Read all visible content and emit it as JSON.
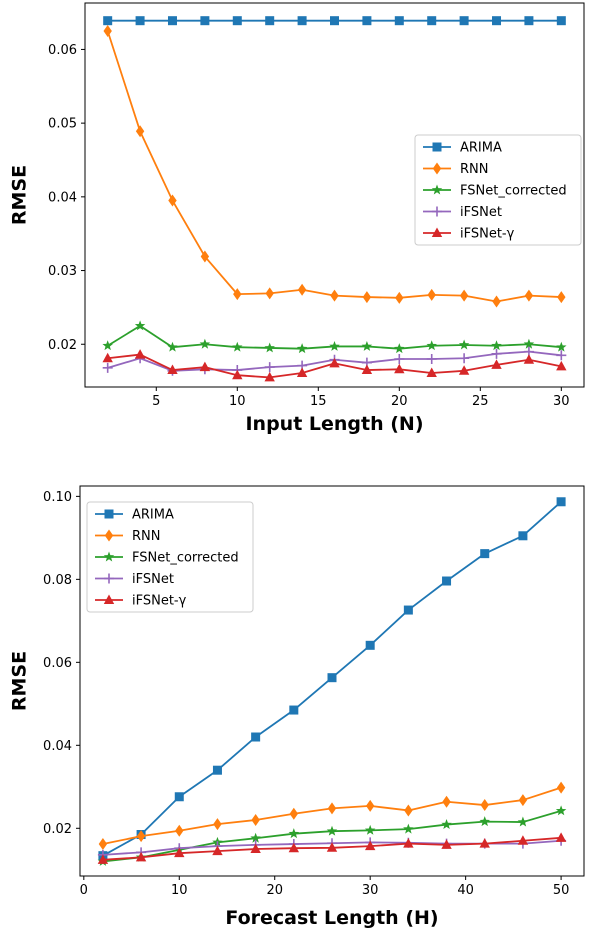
{
  "chart_data": [
    {
      "type": "line",
      "xlabel": "Input Length (N)",
      "ylabel": "RMSE",
      "x": [
        2,
        4,
        6,
        8,
        10,
        12,
        14,
        16,
        18,
        20,
        22,
        24,
        26,
        28,
        30
      ],
      "xlim": [
        0.6,
        31.4
      ],
      "ylim": [
        0.0142,
        0.0663
      ],
      "xticks": [
        5,
        10,
        15,
        20,
        25,
        30
      ],
      "yticks": [
        0.02,
        0.03,
        0.04,
        0.05,
        0.06
      ],
      "legend_position": "center-right",
      "grid": false,
      "series": [
        {
          "name": "ARIMA",
          "color": "#1f77b4",
          "marker": "square",
          "values": [
            0.0639,
            0.0639,
            0.0639,
            0.0639,
            0.0639,
            0.0639,
            0.0639,
            0.0639,
            0.0639,
            0.0639,
            0.0639,
            0.0639,
            0.0639,
            0.0639,
            0.0639
          ]
        },
        {
          "name": "RNN",
          "color": "#ff7f0e",
          "marker": "diamond",
          "values": [
            0.0625,
            0.0489,
            0.0395,
            0.0319,
            0.0268,
            0.0269,
            0.0274,
            0.0266,
            0.0264,
            0.0263,
            0.0267,
            0.0266,
            0.0258,
            0.0266,
            0.0264
          ]
        },
        {
          "name": "FSNet_corrected",
          "color": "#2ca02c",
          "marker": "star",
          "values": [
            0.0198,
            0.0225,
            0.0196,
            0.02,
            0.0196,
            0.0195,
            0.0194,
            0.0197,
            0.0197,
            0.0194,
            0.0198,
            0.0199,
            0.0198,
            0.02,
            0.0196
          ]
        },
        {
          "name": "iFSNet",
          "color": "#9467bd",
          "marker": "plus",
          "values": [
            0.0168,
            0.0181,
            0.0164,
            0.0166,
            0.0165,
            0.0169,
            0.0171,
            0.0179,
            0.0175,
            0.018,
            0.018,
            0.0181,
            0.0187,
            0.019,
            0.0185
          ]
        },
        {
          "name": "iFSNet-γ",
          "color": "#d62728",
          "marker": "triangle",
          "values": [
            0.0181,
            0.0186,
            0.0165,
            0.0169,
            0.0158,
            0.0155,
            0.0161,
            0.0174,
            0.0165,
            0.0166,
            0.0161,
            0.0164,
            0.0172,
            0.0179,
            0.017
          ]
        }
      ]
    },
    {
      "type": "line",
      "xlabel": "Forecast Length (H)",
      "ylabel": "RMSE",
      "x": [
        2,
        6,
        10,
        14,
        18,
        22,
        26,
        30,
        34,
        38,
        42,
        46,
        50
      ],
      "xlim": [
        -0.4,
        52.4
      ],
      "ylim": [
        0.0085,
        0.1025
      ],
      "xticks": [
        0,
        10,
        20,
        30,
        40,
        50
      ],
      "yticks": [
        0.02,
        0.04,
        0.06,
        0.08,
        0.1
      ],
      "legend_position": "upper-left",
      "grid": false,
      "series": [
        {
          "name": "ARIMA",
          "color": "#1f77b4",
          "marker": "square",
          "values": [
            0.0134,
            0.0185,
            0.0276,
            0.034,
            0.042,
            0.0485,
            0.0563,
            0.0641,
            0.0726,
            0.0796,
            0.0862,
            0.0905,
            0.0987
          ]
        },
        {
          "name": "RNN",
          "color": "#ff7f0e",
          "marker": "diamond",
          "values": [
            0.0162,
            0.0181,
            0.0194,
            0.021,
            0.022,
            0.0235,
            0.0248,
            0.0254,
            0.0243,
            0.0264,
            0.0256,
            0.0268,
            0.0298
          ]
        },
        {
          "name": "FSNet_corrected",
          "color": "#2ca02c",
          "marker": "star",
          "values": [
            0.012,
            0.013,
            0.0148,
            0.0166,
            0.0176,
            0.0187,
            0.0193,
            0.0195,
            0.0198,
            0.0209,
            0.0216,
            0.0215,
            0.0242
          ]
        },
        {
          "name": "iFSNet",
          "color": "#9467bd",
          "marker": "plus",
          "values": [
            0.0136,
            0.0142,
            0.0152,
            0.0157,
            0.016,
            0.0162,
            0.0164,
            0.0166,
            0.0165,
            0.0163,
            0.0163,
            0.0163,
            0.017
          ]
        },
        {
          "name": "iFSNet-γ",
          "color": "#d62728",
          "marker": "triangle",
          "values": [
            0.0124,
            0.013,
            0.014,
            0.0145,
            0.015,
            0.0152,
            0.0153,
            0.0157,
            0.0163,
            0.016,
            0.0163,
            0.017,
            0.0177
          ]
        }
      ]
    }
  ]
}
